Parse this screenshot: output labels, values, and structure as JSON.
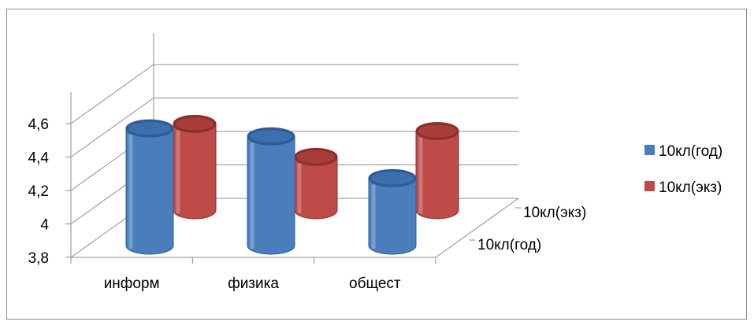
{
  "chart_data": {
    "type": "bar",
    "categories": [
      "информ",
      "физика",
      "общест"
    ],
    "series": [
      {
        "name": "10кл(год)",
        "color": "#4a7ebb",
        "values": [
          4.53,
          4.48,
          4.22
        ]
      },
      {
        "name": "10кл(экз)",
        "color": "#be4b48",
        "values": [
          4.4,
          4.17,
          4.35
        ]
      }
    ],
    "y_ticks": [
      "4,6",
      "4,4",
      "4,2",
      "4",
      "3,8"
    ],
    "depth_labels": [
      "10кл(экз)",
      "10кл(год)"
    ],
    "ylim": [
      3.8,
      4.6
    ],
    "legend_position": "right",
    "grid": true,
    "style": "3d-cylinder"
  }
}
